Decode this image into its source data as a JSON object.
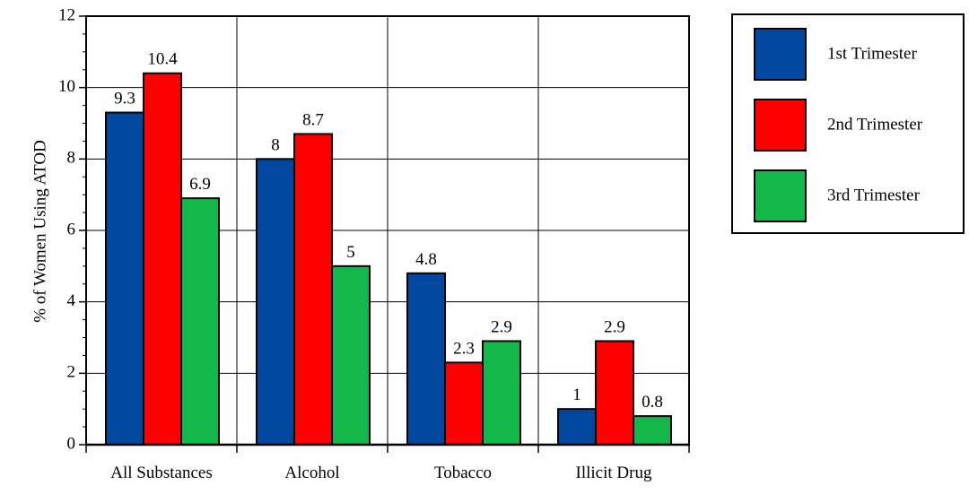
{
  "chart_data": {
    "type": "bar",
    "title": "",
    "xlabel": "",
    "ylabel": "% of Women Using ATOD",
    "ylim": [
      0,
      12
    ],
    "y_ticks": [
      "0",
      "2",
      "4",
      "6",
      "8",
      "10",
      "12"
    ],
    "categories": [
      "All Substances",
      "Alcohol",
      "Tobacco",
      "Illicit Drug"
    ],
    "grid": true,
    "legend_position": "top-right",
    "series": [
      {
        "name": "1st Trimester",
        "color": "#0047a0",
        "values": [
          9.3,
          8,
          4.8,
          1
        ],
        "labels": [
          "9.3",
          "8",
          "4.8",
          "1"
        ]
      },
      {
        "name": "2nd Trimester",
        "color": "#ff0000",
        "values": [
          10.4,
          8.7,
          2.3,
          2.9
        ],
        "labels": [
          "10.4",
          "8.7",
          "2.3",
          "2.9"
        ]
      },
      {
        "name": "3rd Trimester",
        "color": "#14b84a",
        "values": [
          6.9,
          5,
          2.9,
          0.8
        ],
        "labels": [
          "6.9",
          "5",
          "2.9",
          "0.8"
        ]
      }
    ]
  }
}
